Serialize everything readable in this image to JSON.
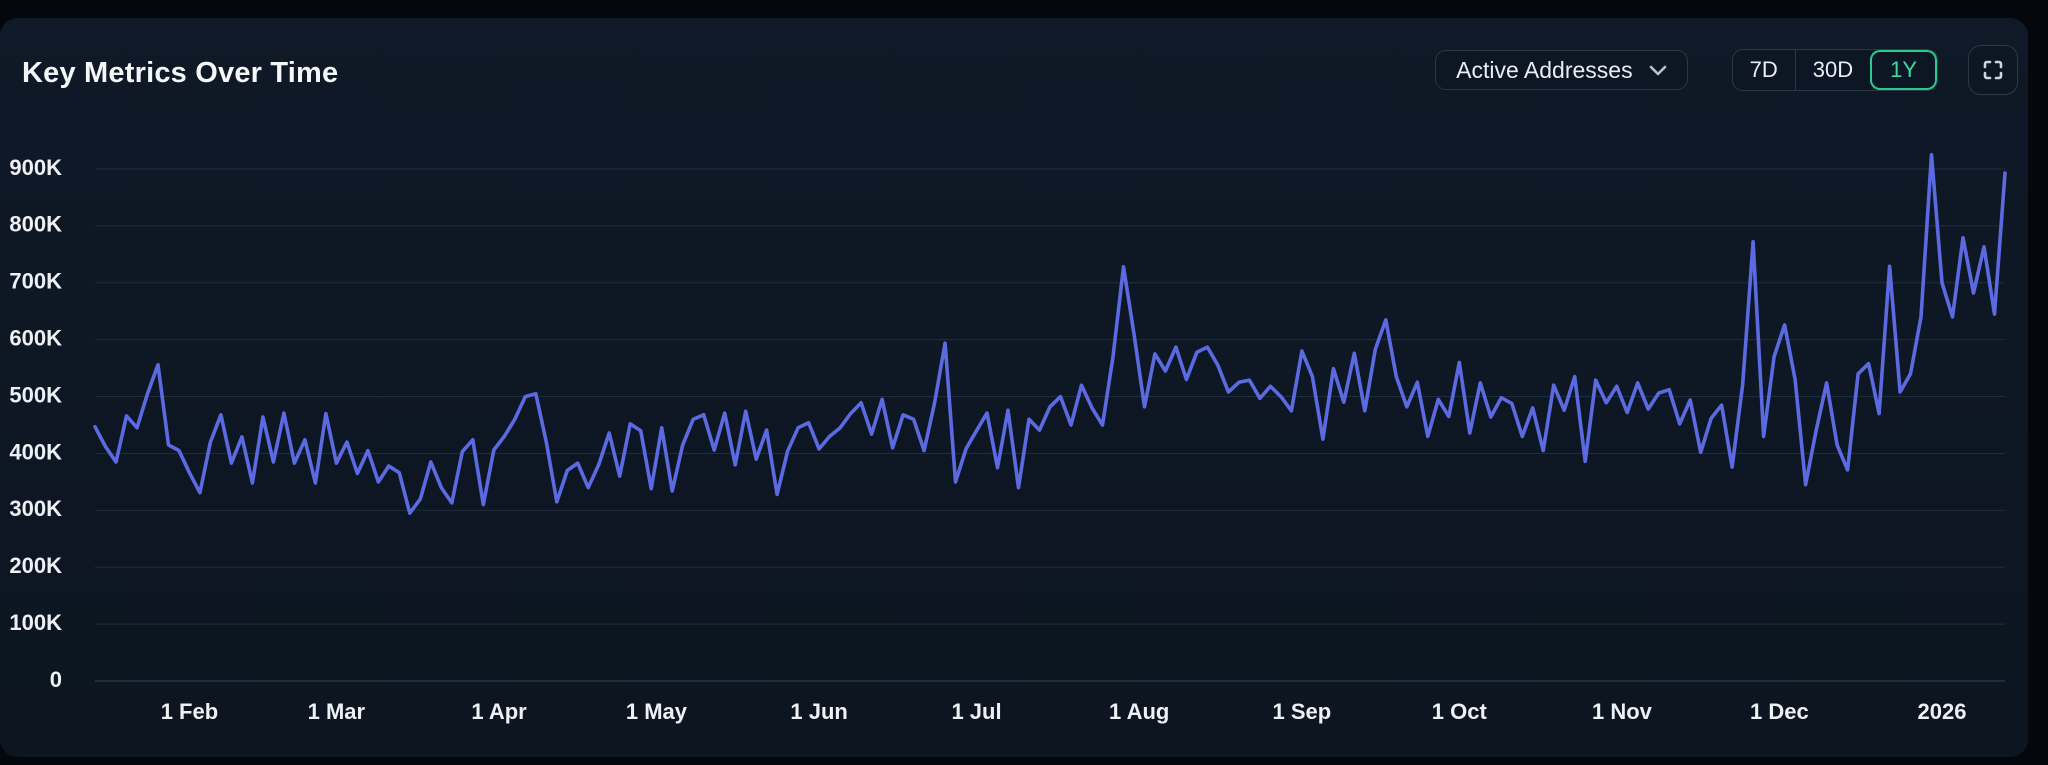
{
  "panel": {
    "title": "Key Metrics Over Time"
  },
  "controls": {
    "metric_dropdown": {
      "value": "Active Addresses",
      "icon": "chevron-down"
    },
    "range_buttons": [
      {
        "label": "7D",
        "active": false
      },
      {
        "label": "30D",
        "active": false
      },
      {
        "label": "1Y",
        "active": true
      }
    ],
    "fullscreen_icon": "corner-brackets"
  },
  "colors": {
    "accent_green": "#3bdb9d",
    "line": "#5c6ae2",
    "panel_bg": "#0d1622",
    "page_bg": "#04080d",
    "label_text": "#edf0f4"
  },
  "chart_data": {
    "type": "line",
    "title": "Key Metrics Over Time",
    "metric": "Active Addresses",
    "legend": false,
    "grid": true,
    "line_color": "#5c6ae2",
    "unit_note": "values in thousands of active addresses, sampled every 2 days",
    "start_date": "2025-01-14",
    "sample_interval_days": 2,
    "span_days": 364,
    "ylim_thousands": [
      0,
      900
    ],
    "y_axis": {
      "tick_values_thousands": [
        0,
        100,
        200,
        300,
        400,
        500,
        600,
        700,
        800,
        900
      ],
      "tick_labels": [
        "0",
        "100K",
        "200K",
        "300K",
        "400K",
        "500K",
        "600K",
        "700K",
        "800K",
        "900K"
      ]
    },
    "x_axis": {
      "ticks": [
        {
          "label": "1 Feb",
          "day": 18
        },
        {
          "label": "1 Mar",
          "day": 46
        },
        {
          "label": "1 Apr",
          "day": 77
        },
        {
          "label": "1 May",
          "day": 107
        },
        {
          "label": "1 Jun",
          "day": 138
        },
        {
          "label": "1 Jul",
          "day": 168
        },
        {
          "label": "1 Aug",
          "day": 199
        },
        {
          "label": "1 Sep",
          "day": 230
        },
        {
          "label": "1 Oct",
          "day": 260
        },
        {
          "label": "1 Nov",
          "day": 291
        },
        {
          "label": "1 Dec",
          "day": 321
        },
        {
          "label": "2026",
          "day": 352
        }
      ]
    },
    "values_thousands": [
      447,
      412,
      385,
      466,
      445,
      505,
      556,
      415,
      405,
      366,
      331,
      420,
      468,
      383,
      429,
      348,
      464,
      385,
      471,
      383,
      424,
      348,
      470,
      383,
      420,
      365,
      405,
      350,
      378,
      366,
      295,
      320,
      385,
      340,
      313,
      403,
      424,
      310,
      406,
      430,
      460,
      500,
      505,
      420,
      315,
      370,
      383,
      340,
      380,
      436,
      360,
      452,
      440,
      338,
      445,
      334,
      415,
      460,
      468,
      406,
      471,
      380,
      474,
      390,
      441,
      328,
      404,
      445,
      454,
      408,
      430,
      445,
      470,
      489,
      434,
      495,
      410,
      468,
      460,
      405,
      489,
      594,
      350,
      408,
      440,
      471,
      375,
      476,
      340,
      460,
      441,
      482,
      500,
      450,
      520,
      480,
      450,
      570,
      728,
      610,
      482,
      575,
      545,
      587,
      530,
      578,
      587,
      555,
      508,
      525,
      529,
      497,
      518,
      500,
      475,
      580,
      535,
      425,
      549,
      490,
      576,
      475,
      583,
      635,
      535,
      482,
      525,
      430,
      495,
      465,
      560,
      436,
      524,
      464,
      498,
      488,
      430,
      480,
      405,
      520,
      476,
      535,
      386,
      529,
      489,
      518,
      472,
      524,
      478,
      506,
      512,
      452,
      494,
      402,
      462,
      485,
      376,
      520,
      772,
      430,
      570,
      626,
      530,
      345,
      440,
      524,
      415,
      371,
      540,
      558,
      470,
      729,
      508,
      540,
      640,
      925,
      700,
      640,
      779,
      682,
      763,
      645,
      893
    ]
  }
}
